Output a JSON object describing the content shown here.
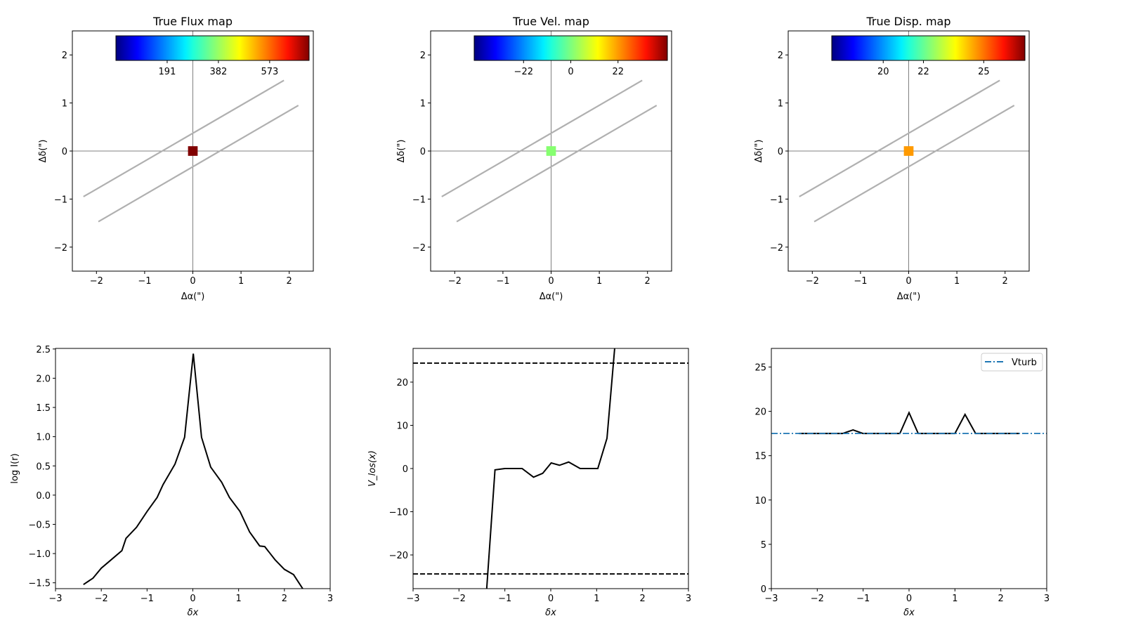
{
  "chart_data": [
    {
      "type": "heatmap",
      "title": "True Flux map",
      "xlabel": "Δα(\")",
      "ylabel": "Δδ(\")",
      "xlim": [
        -2.5,
        2.5
      ],
      "ylim": [
        -2.5,
        2.5
      ],
      "xticks": [
        -2,
        -1,
        0,
        1,
        2
      ],
      "yticks": [
        -2,
        -1,
        0,
        1,
        2
      ],
      "colorbar": {
        "cmap": "jet",
        "range": [
          0,
          720
        ],
        "ticks": [
          191,
          382,
          573
        ],
        "location": "top-inset"
      },
      "pixel": {
        "x": 0,
        "y": 0,
        "size": 0.2,
        "color": "#800000"
      },
      "slit_lines": [
        [
          [
            -2.27,
            -0.95
          ],
          [
            1.89,
            1.47
          ]
        ],
        [
          [
            -1.96,
            -1.47
          ],
          [
            2.19,
            0.95
          ]
        ]
      ]
    },
    {
      "type": "heatmap",
      "title": "True Vel. map",
      "xlabel": "Δα(\")",
      "ylabel": "Δδ(\")",
      "xlim": [
        -2.5,
        2.5
      ],
      "ylim": [
        -2.5,
        2.5
      ],
      "xticks": [
        -2,
        -1,
        0,
        1,
        2
      ],
      "yticks": [
        -2,
        -1,
        0,
        1,
        2
      ],
      "colorbar": {
        "cmap": "jet",
        "range": [
          -45,
          45
        ],
        "ticks": [
          -22,
          0,
          22
        ],
        "location": "top-inset"
      },
      "pixel": {
        "x": 0,
        "y": 0,
        "size": 0.2,
        "color": "#86ff70"
      },
      "slit_lines": [
        [
          [
            -2.27,
            -0.95
          ],
          [
            1.89,
            1.47
          ]
        ],
        [
          [
            -1.96,
            -1.47
          ],
          [
            2.19,
            0.95
          ]
        ]
      ]
    },
    {
      "type": "heatmap",
      "title": "True Disp. map",
      "xlabel": "Δα(\")",
      "ylabel": "Δδ(\")",
      "xlim": [
        -2.5,
        2.5
      ],
      "ylim": [
        -2.5,
        2.5
      ],
      "xticks": [
        -2,
        -1,
        0,
        1,
        2
      ],
      "yticks": [
        -2,
        -1,
        0,
        1,
        2
      ],
      "colorbar": {
        "cmap": "jet",
        "range": [
          17.44,
          27.05
        ],
        "ticks": [
          20,
          22,
          25
        ],
        "location": "top-inset"
      },
      "pixel": {
        "x": 0,
        "y": 0,
        "size": 0.2,
        "color": "#ff9a00"
      },
      "slit_lines": [
        [
          [
            -2.27,
            -0.95
          ],
          [
            1.89,
            1.47
          ]
        ],
        [
          [
            -1.96,
            -1.47
          ],
          [
            2.19,
            0.95
          ]
        ]
      ]
    },
    {
      "type": "line",
      "title": "",
      "xlabel": "δx",
      "ylabel": "log I(r)",
      "xlim": [
        -3,
        3
      ],
      "ylim": [
        -1.6,
        2.51
      ],
      "xticks": [
        -3,
        -2,
        -1,
        0,
        1,
        2,
        3
      ],
      "yticks": [
        -1.5,
        -1.0,
        -0.5,
        0.0,
        0.5,
        1.0,
        1.5,
        2.0,
        2.5
      ],
      "ytick_labels": [
        "−1.5",
        "−1.0",
        "−0.5",
        "0.0",
        "0.5",
        "1.0",
        "1.5",
        "2.0",
        "2.5"
      ],
      "series": [
        {
          "name": "profile",
          "color": "#000000",
          "style": "solid",
          "x": [
            -2.39,
            -2.18,
            -2.0,
            -1.85,
            -1.55,
            -1.46,
            -1.23,
            -1.0,
            -0.78,
            -0.65,
            -0.39,
            -0.18,
            0.01,
            0.19,
            0.39,
            0.63,
            0.8,
            1.03,
            1.24,
            1.46,
            1.57,
            1.8,
            2.0,
            2.2,
            2.4
          ],
          "y": [
            -1.53,
            -1.42,
            -1.25,
            -1.15,
            -0.95,
            -0.74,
            -0.55,
            -0.28,
            -0.04,
            0.18,
            0.53,
            0.99,
            2.42,
            0.99,
            0.48,
            0.22,
            -0.04,
            -0.28,
            -0.63,
            -0.87,
            -0.88,
            -1.11,
            -1.27,
            -1.36,
            -1.6
          ]
        }
      ]
    },
    {
      "type": "line",
      "title": "",
      "xlabel": "δx",
      "ylabel": "V_los(x)",
      "xlim": [
        -3,
        3
      ],
      "ylim": [
        -27.8,
        27.8
      ],
      "xticks": [
        -3,
        -2,
        -1,
        0,
        1,
        2,
        3
      ],
      "yticks": [
        -20,
        -10,
        0,
        10,
        20
      ],
      "ytick_labels": [
        "−20",
        "−10",
        "0",
        "10",
        "20"
      ],
      "series": [
        {
          "name": "velocity",
          "color": "#000000",
          "style": "solid",
          "x": [
            -1.41,
            -1.215,
            -1.0,
            -0.625,
            -0.375,
            -0.175,
            0.01,
            0.19,
            0.39,
            0.64,
            1.025,
            1.225,
            1.41
          ],
          "y": [
            -30,
            -0.3,
            0,
            0,
            -2,
            -1.1,
            1.3,
            0.75,
            1.5,
            0,
            0,
            7,
            30
          ]
        },
        {
          "name": "upper-limit",
          "color": "#000000",
          "style": "dashed",
          "x": [
            -3,
            3
          ],
          "y": [
            24.4,
            24.4
          ]
        },
        {
          "name": "lower-limit",
          "color": "#000000",
          "style": "dashed",
          "x": [
            -3,
            3
          ],
          "y": [
            -24.4,
            -24.4
          ]
        }
      ]
    },
    {
      "type": "line",
      "title": "",
      "xlabel": "δx",
      "ylabel": "",
      "xlim": [
        -3,
        3
      ],
      "ylim": [
        0,
        27.1
      ],
      "xticks": [
        -3,
        -2,
        -1,
        0,
        1,
        2,
        3
      ],
      "yticks": [
        0,
        5,
        10,
        15,
        20,
        25
      ],
      "ytick_labels": [
        "0",
        "5",
        "10",
        "15",
        "20",
        "25"
      ],
      "legend": {
        "placement": "top-right",
        "entries": [
          "Vturb"
        ]
      },
      "series": [
        {
          "name": "dispersion",
          "color": "#000000",
          "style": "solid",
          "x": [
            -2.4,
            -1.45,
            -1.22,
            -1.0,
            -0.2,
            0.0,
            0.2,
            1.0,
            1.22,
            1.45,
            2.4
          ],
          "y": [
            17.5,
            17.5,
            17.9,
            17.5,
            17.5,
            19.85,
            17.5,
            17.5,
            19.65,
            17.5,
            17.5
          ]
        },
        {
          "name": "Vturb",
          "color": "#1f77b4",
          "style": "dashdot",
          "x": [
            -3,
            3
          ],
          "y": [
            17.5,
            17.5
          ]
        }
      ]
    }
  ]
}
